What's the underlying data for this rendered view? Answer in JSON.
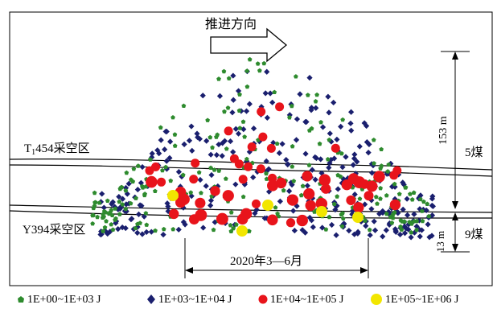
{
  "direction_label": "推进方向",
  "labels": {
    "gob_upper_prefix": "T",
    "gob_upper_sub": "1",
    "gob_upper_suffix": "454采空区",
    "gob_lower": "Y394采空区",
    "coal_5": "5煤",
    "coal_9": "9煤",
    "dim_153": "153 m",
    "dim_13": "13 m",
    "period": "2020年3—6月"
  },
  "legend": [
    {
      "label": "1E+00~1E+03 J",
      "color": "#2e8b2e"
    },
    {
      "label": "1E+03~1E+04 J",
      "color": "#1a1f6e"
    },
    {
      "label": "1E+04~1E+05 J",
      "color": "#e8141b"
    },
    {
      "label": "1E+05~1E+06 J",
      "color": "#f2e600"
    }
  ]
}
